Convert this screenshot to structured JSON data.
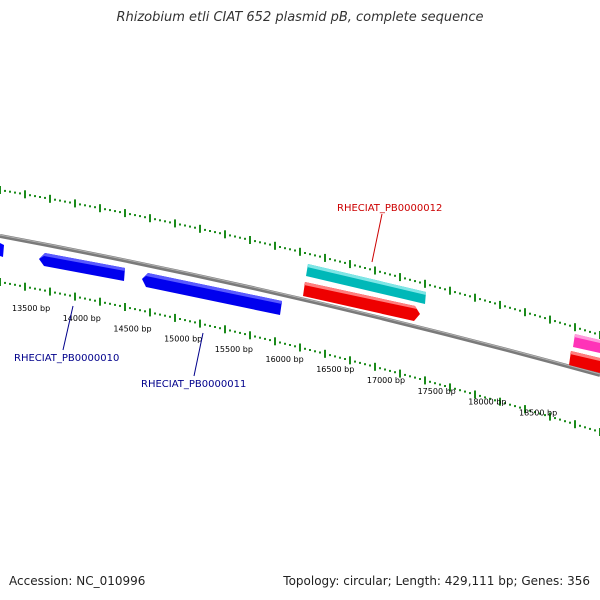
{
  "title": "Rhizobium etli CIAT 652 plasmid pB, complete sequence",
  "footer": {
    "accession": "Accession: NC_010996",
    "summary": "Topology: circular; Length: 429,111 bp; Genes: 356"
  },
  "colors": {
    "backbone": "#808080",
    "tick": "#1a8a1a",
    "forward_gene": "#00c0c0",
    "reverse_gene": "#ff0000",
    "reverse_gene_2": "#0000ff",
    "pink_gene": "#ff3fbf",
    "label_blue": "#00008b",
    "label_red": "#cc0000"
  },
  "scale": {
    "start_bp": 13500,
    "end_bp": 18500,
    "step_bp": 500,
    "unit": "bp",
    "labels": [
      "13500 bp",
      "14000 bp",
      "14500 bp",
      "15000 bp",
      "15500 bp",
      "16000 bp",
      "16500 bp",
      "17000 bp",
      "17500 bp",
      "18000 bp",
      "18500 bp"
    ]
  },
  "genes": [
    {
      "id": "left-edge",
      "label": "",
      "strand": "reverse",
      "track": "inner",
      "color": "#0000ff"
    },
    {
      "id": "RHECIAT_PB0000010",
      "label": "RHECIAT_PB0000010",
      "strand": "reverse",
      "track": "inner",
      "color": "#0000ff"
    },
    {
      "id": "RHECIAT_PB0000011",
      "label": "RHECIAT_PB0000011",
      "strand": "reverse",
      "track": "inner",
      "color": "#0000ff"
    },
    {
      "id": "RHECIAT_PB0000012",
      "label": "RHECIAT_PB0000012",
      "strand": "forward",
      "track": "outer",
      "color": "#00c0c0"
    },
    {
      "id": "red-gene-1",
      "label": "",
      "strand": "forward",
      "track": "inner",
      "color": "#ff0000"
    },
    {
      "id": "pink-gene",
      "label": "",
      "strand": "forward",
      "track": "outer",
      "color": "#ff3fbf"
    },
    {
      "id": "red-gene-2",
      "label": "",
      "strand": "forward",
      "track": "inner",
      "color": "#ff0000"
    }
  ]
}
